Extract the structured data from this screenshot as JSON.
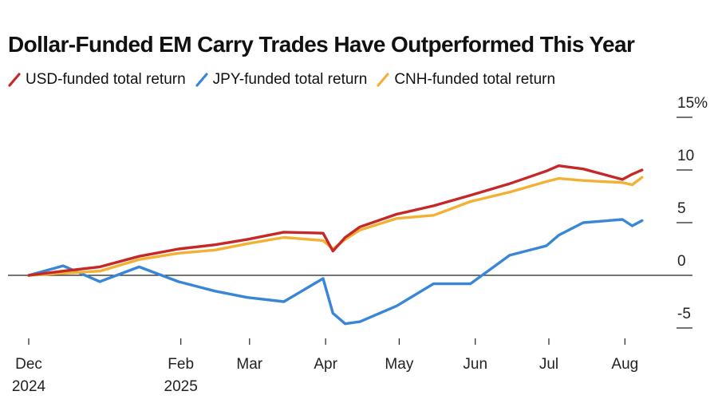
{
  "chart_data": {
    "type": "line",
    "title": "Dollar-Funded EM Carry Trades Have Outperformed This Year",
    "xlabel": "",
    "ylabel": "",
    "ylim": [
      -5,
      15
    ],
    "yticks": [
      {
        "value": 15,
        "label": "15%"
      },
      {
        "value": 10,
        "label": "10"
      },
      {
        "value": 5,
        "label": "5"
      },
      {
        "value": 0,
        "label": "0"
      },
      {
        "value": -5,
        "label": "-5"
      }
    ],
    "xticks": [
      {
        "date": "2024-12-01",
        "line1": "Dec",
        "line2": "2024"
      },
      {
        "date": "2025-02-01",
        "line1": "Feb",
        "line2": "2025"
      },
      {
        "date": "2025-03-01",
        "line1": "Mar",
        "line2": ""
      },
      {
        "date": "2025-04-01",
        "line1": "Apr",
        "line2": ""
      },
      {
        "date": "2025-05-01",
        "line1": "May",
        "line2": ""
      },
      {
        "date": "2025-06-01",
        "line1": "Jun",
        "line2": ""
      },
      {
        "date": "2025-07-01",
        "line1": "Jul",
        "line2": ""
      },
      {
        "date": "2025-08-01",
        "line1": "Aug",
        "line2": ""
      }
    ],
    "xrange": [
      "2024-12-01",
      "2025-08-10"
    ],
    "grid": false,
    "legend_position": "top-left",
    "x": [
      "2024-12-01",
      "2024-12-15",
      "2024-12-30",
      "2025-01-15",
      "2025-01-31",
      "2025-02-15",
      "2025-02-28",
      "2025-03-15",
      "2025-03-31",
      "2025-04-04",
      "2025-04-09",
      "2025-04-15",
      "2025-04-30",
      "2025-05-15",
      "2025-05-30",
      "2025-06-15",
      "2025-06-30",
      "2025-07-05",
      "2025-07-15",
      "2025-07-31",
      "2025-08-04",
      "2025-08-08"
    ],
    "series": [
      {
        "name": "USD-funded total return",
        "color": "#c62828",
        "values": [
          0.0,
          0.4,
          0.8,
          1.8,
          2.5,
          2.9,
          3.4,
          4.1,
          4.0,
          2.3,
          3.6,
          4.6,
          5.8,
          6.6,
          7.6,
          8.7,
          9.9,
          10.4,
          10.1,
          9.1,
          9.6,
          10.0
        ]
      },
      {
        "name": "JPY-funded total return",
        "color": "#3a86d6",
        "values": [
          0.0,
          0.9,
          -0.6,
          0.8,
          -0.6,
          -1.5,
          -2.1,
          -2.5,
          -0.3,
          -3.6,
          -4.6,
          -4.4,
          -2.9,
          -0.8,
          -0.8,
          1.9,
          2.8,
          3.8,
          5.0,
          5.3,
          4.7,
          5.2
        ]
      },
      {
        "name": "CNH-funded total return",
        "color": "#f2b134",
        "values": [
          0.0,
          0.2,
          0.4,
          1.5,
          2.1,
          2.4,
          3.0,
          3.6,
          3.3,
          2.5,
          3.4,
          4.3,
          5.4,
          5.7,
          7.0,
          7.9,
          8.9,
          9.2,
          9.0,
          8.8,
          8.6,
          9.3
        ]
      }
    ]
  }
}
